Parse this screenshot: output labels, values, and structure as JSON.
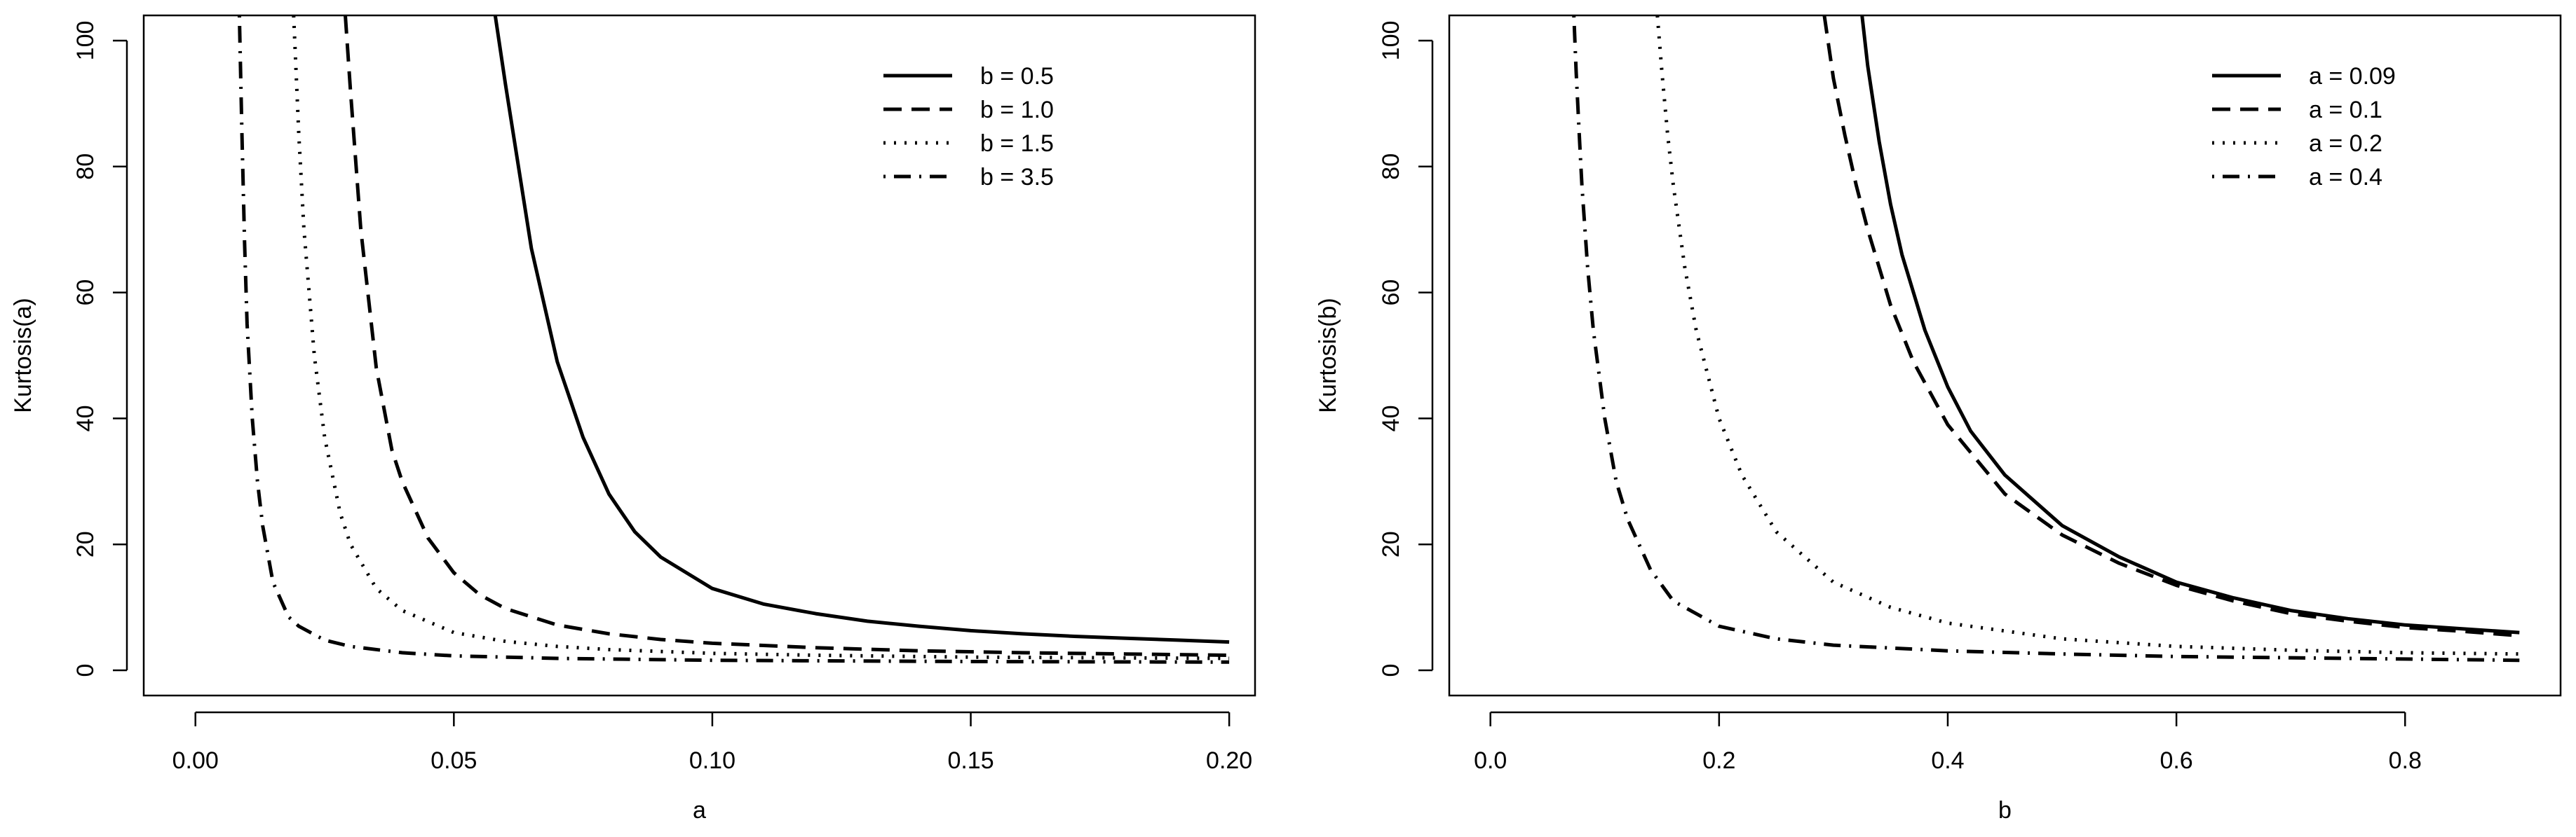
{
  "chart_data": [
    {
      "type": "line",
      "xlabel": "a",
      "ylabel": "Kurtosis(a)",
      "xlim": [
        -0.01,
        0.205
      ],
      "ylim": [
        -4,
        104
      ],
      "xticks": [
        0.0,
        0.05,
        0.1,
        0.15,
        0.2
      ],
      "xtick_labels": [
        "0.00",
        "0.05",
        "0.10",
        "0.15",
        "0.20"
      ],
      "yticks": [
        0,
        20,
        40,
        60,
        80,
        100
      ],
      "ytick_labels": [
        "0",
        "20",
        "40",
        "60",
        "80",
        "100"
      ],
      "grid": false,
      "legend_position": "top-right",
      "series": [
        {
          "name": "b = 0.5",
          "style": "solid",
          "x": [
            0.058,
            0.06,
            0.065,
            0.07,
            0.075,
            0.08,
            0.085,
            0.09,
            0.1,
            0.11,
            0.12,
            0.13,
            0.14,
            0.15,
            0.16,
            0.17,
            0.18,
            0.19,
            0.2
          ],
          "y": [
            104,
            93,
            67,
            49,
            37,
            28,
            22,
            18,
            13,
            10.5,
            9,
            7.8,
            7,
            6.3,
            5.8,
            5.4,
            5.1,
            4.8,
            4.5
          ]
        },
        {
          "name": "b = 1.0",
          "style": "dashed",
          "x": [
            0.029,
            0.03,
            0.032,
            0.035,
            0.038,
            0.04,
            0.045,
            0.05,
            0.055,
            0.06,
            0.07,
            0.08,
            0.09,
            0.1,
            0.12,
            0.14,
            0.16,
            0.18,
            0.2
          ],
          "y": [
            104,
            92,
            70,
            48,
            35,
            30,
            21,
            15.5,
            12,
            9.8,
            7.2,
            5.8,
            4.9,
            4.3,
            3.6,
            3.1,
            2.8,
            2.6,
            2.4
          ]
        },
        {
          "name": "b = 1.5",
          "style": "dotted",
          "x": [
            0.019,
            0.02,
            0.021,
            0.023,
            0.025,
            0.028,
            0.03,
            0.035,
            0.04,
            0.05,
            0.06,
            0.07,
            0.08,
            0.1,
            0.12,
            0.15,
            0.2
          ],
          "y": [
            104,
            85,
            70,
            50,
            37,
            25,
            20,
            13,
            9.5,
            6,
            4.6,
            3.8,
            3.3,
            2.7,
            2.4,
            2.1,
            1.9
          ]
        },
        {
          "name": "b = 3.5",
          "style": "dotdash",
          "x": [
            0.0085,
            0.009,
            0.0095,
            0.01,
            0.011,
            0.012,
            0.013,
            0.015,
            0.018,
            0.02,
            0.025,
            0.03,
            0.04,
            0.05,
            0.07,
            0.1,
            0.15,
            0.2
          ],
          "y": [
            104,
            85,
            68,
            55,
            40,
            30,
            23,
            14,
            8.5,
            7,
            4.8,
            3.8,
            2.8,
            2.3,
            1.9,
            1.6,
            1.4,
            1.3
          ]
        }
      ]
    },
    {
      "type": "line",
      "xlabel": "b",
      "ylabel": "Kurtosis(b)",
      "xlim": [
        -0.036,
        0.936
      ],
      "ylim": [
        -4,
        104
      ],
      "xticks": [
        0.0,
        0.2,
        0.4,
        0.6,
        0.8
      ],
      "xtick_labels": [
        "0.0",
        "0.2",
        "0.4",
        "0.6",
        "0.8"
      ],
      "yticks": [
        0,
        20,
        40,
        60,
        80,
        100
      ],
      "ytick_labels": [
        "0",
        "20",
        "40",
        "60",
        "80",
        "100"
      ],
      "grid": false,
      "legend_position": "top-right",
      "series": [
        {
          "name": "a = 0.09",
          "style": "solid",
          "x": [
            0.325,
            0.33,
            0.34,
            0.35,
            0.36,
            0.38,
            0.4,
            0.42,
            0.45,
            0.5,
            0.55,
            0.6,
            0.65,
            0.7,
            0.75,
            0.8,
            0.85,
            0.9
          ],
          "y": [
            104,
            96,
            84,
            74,
            66,
            54,
            45,
            38,
            31,
            23,
            18,
            14,
            11.5,
            9.5,
            8.2,
            7.2,
            6.6,
            6
          ]
        },
        {
          "name": "a = 0.1",
          "style": "dashed",
          "x": [
            0.292,
            0.3,
            0.31,
            0.32,
            0.33,
            0.35,
            0.37,
            0.4,
            0.45,
            0.5,
            0.55,
            0.6,
            0.65,
            0.7,
            0.75,
            0.8,
            0.85,
            0.9
          ],
          "y": [
            104,
            94,
            85,
            77,
            70,
            58,
            49,
            39,
            28,
            21.5,
            17,
            13.5,
            11,
            9,
            7.8,
            6.8,
            6.2,
            5.5
          ]
        },
        {
          "name": "a = 0.2",
          "style": "dotted",
          "x": [
            0.146,
            0.15,
            0.155,
            0.16,
            0.17,
            0.18,
            0.2,
            0.22,
            0.25,
            0.3,
            0.35,
            0.4,
            0.5,
            0.6,
            0.7,
            0.8,
            0.9
          ],
          "y": [
            104,
            95,
            85,
            77,
            64,
            54,
            40,
            31,
            22,
            14,
            10,
            7.5,
            5,
            3.8,
            3.2,
            2.8,
            2.6
          ]
        },
        {
          "name": "a = 0.4",
          "style": "dotdash",
          "x": [
            0.073,
            0.075,
            0.078,
            0.08,
            0.085,
            0.09,
            0.1,
            0.11,
            0.12,
            0.14,
            0.16,
            0.2,
            0.25,
            0.3,
            0.4,
            0.5,
            0.6,
            0.7,
            0.8,
            0.9
          ],
          "y": [
            104,
            95,
            84,
            77,
            64,
            54,
            40,
            30,
            24,
            16,
            11,
            7,
            5,
            4,
            3.1,
            2.6,
            2.2,
            2,
            1.8,
            1.6
          ]
        }
      ]
    }
  ]
}
